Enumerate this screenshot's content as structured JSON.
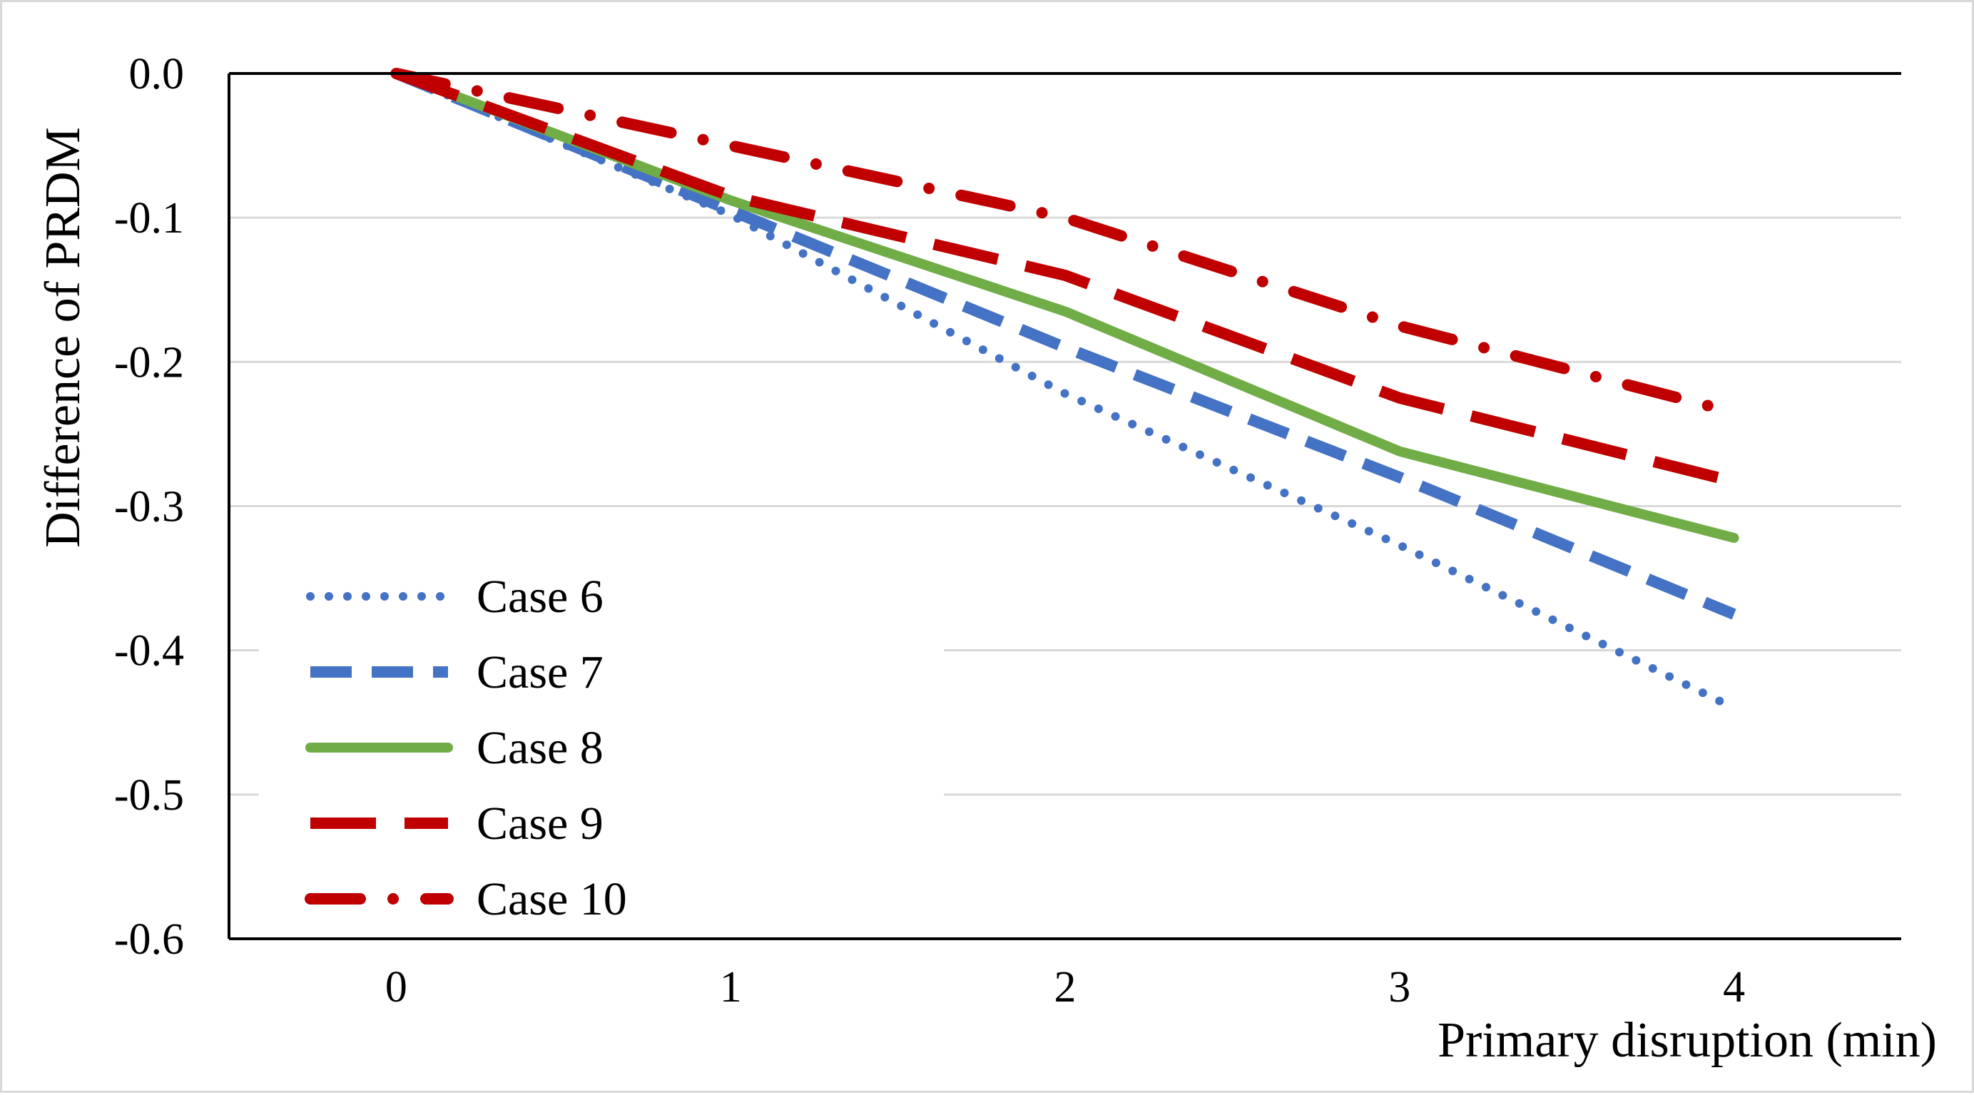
{
  "chart_data": {
    "type": "line",
    "title": "",
    "xlabel": "Primary disruption (min)",
    "ylabel": "Difference of PRDM",
    "x": [
      0,
      1,
      2,
      3,
      4
    ],
    "x_tick_labels": [
      "0",
      "1",
      "2",
      "3",
      "4"
    ],
    "xlim": [
      -0.5,
      4.5
    ],
    "ylim": [
      -0.6,
      0.0
    ],
    "y_ticks": [
      0.0,
      -0.1,
      -0.2,
      -0.3,
      -0.4,
      -0.5,
      -0.6
    ],
    "y_tick_labels": [
      "0.0",
      "-0.1",
      "-0.2",
      "-0.3",
      "-0.4",
      "-0.5",
      "-0.6"
    ],
    "grid": "horizontal",
    "legend_position": "bottom-left",
    "series": [
      {
        "name": "Case 6",
        "color": "#4472C4",
        "dash": "dotted",
        "values": [
          0.0,
          -0.098,
          -0.222,
          -0.327,
          -0.44
        ]
      },
      {
        "name": "Case 7",
        "color": "#4472C4",
        "dash": "dashed",
        "values": [
          0.0,
          -0.095,
          -0.19,
          -0.28,
          -0.375
        ]
      },
      {
        "name": "Case 8",
        "color": "#70AD47",
        "dash": "solid",
        "values": [
          0.0,
          -0.088,
          -0.165,
          -0.262,
          -0.322
        ]
      },
      {
        "name": "Case 9",
        "color": "#C00000",
        "dash": "long-dash",
        "values": [
          0.0,
          -0.085,
          -0.14,
          -0.225,
          -0.283
        ]
      },
      {
        "name": "Case 10",
        "color": "#C00000",
        "dash": "dash-dot",
        "values": [
          0.0,
          -0.05,
          -0.1,
          -0.175,
          -0.235
        ]
      }
    ]
  }
}
